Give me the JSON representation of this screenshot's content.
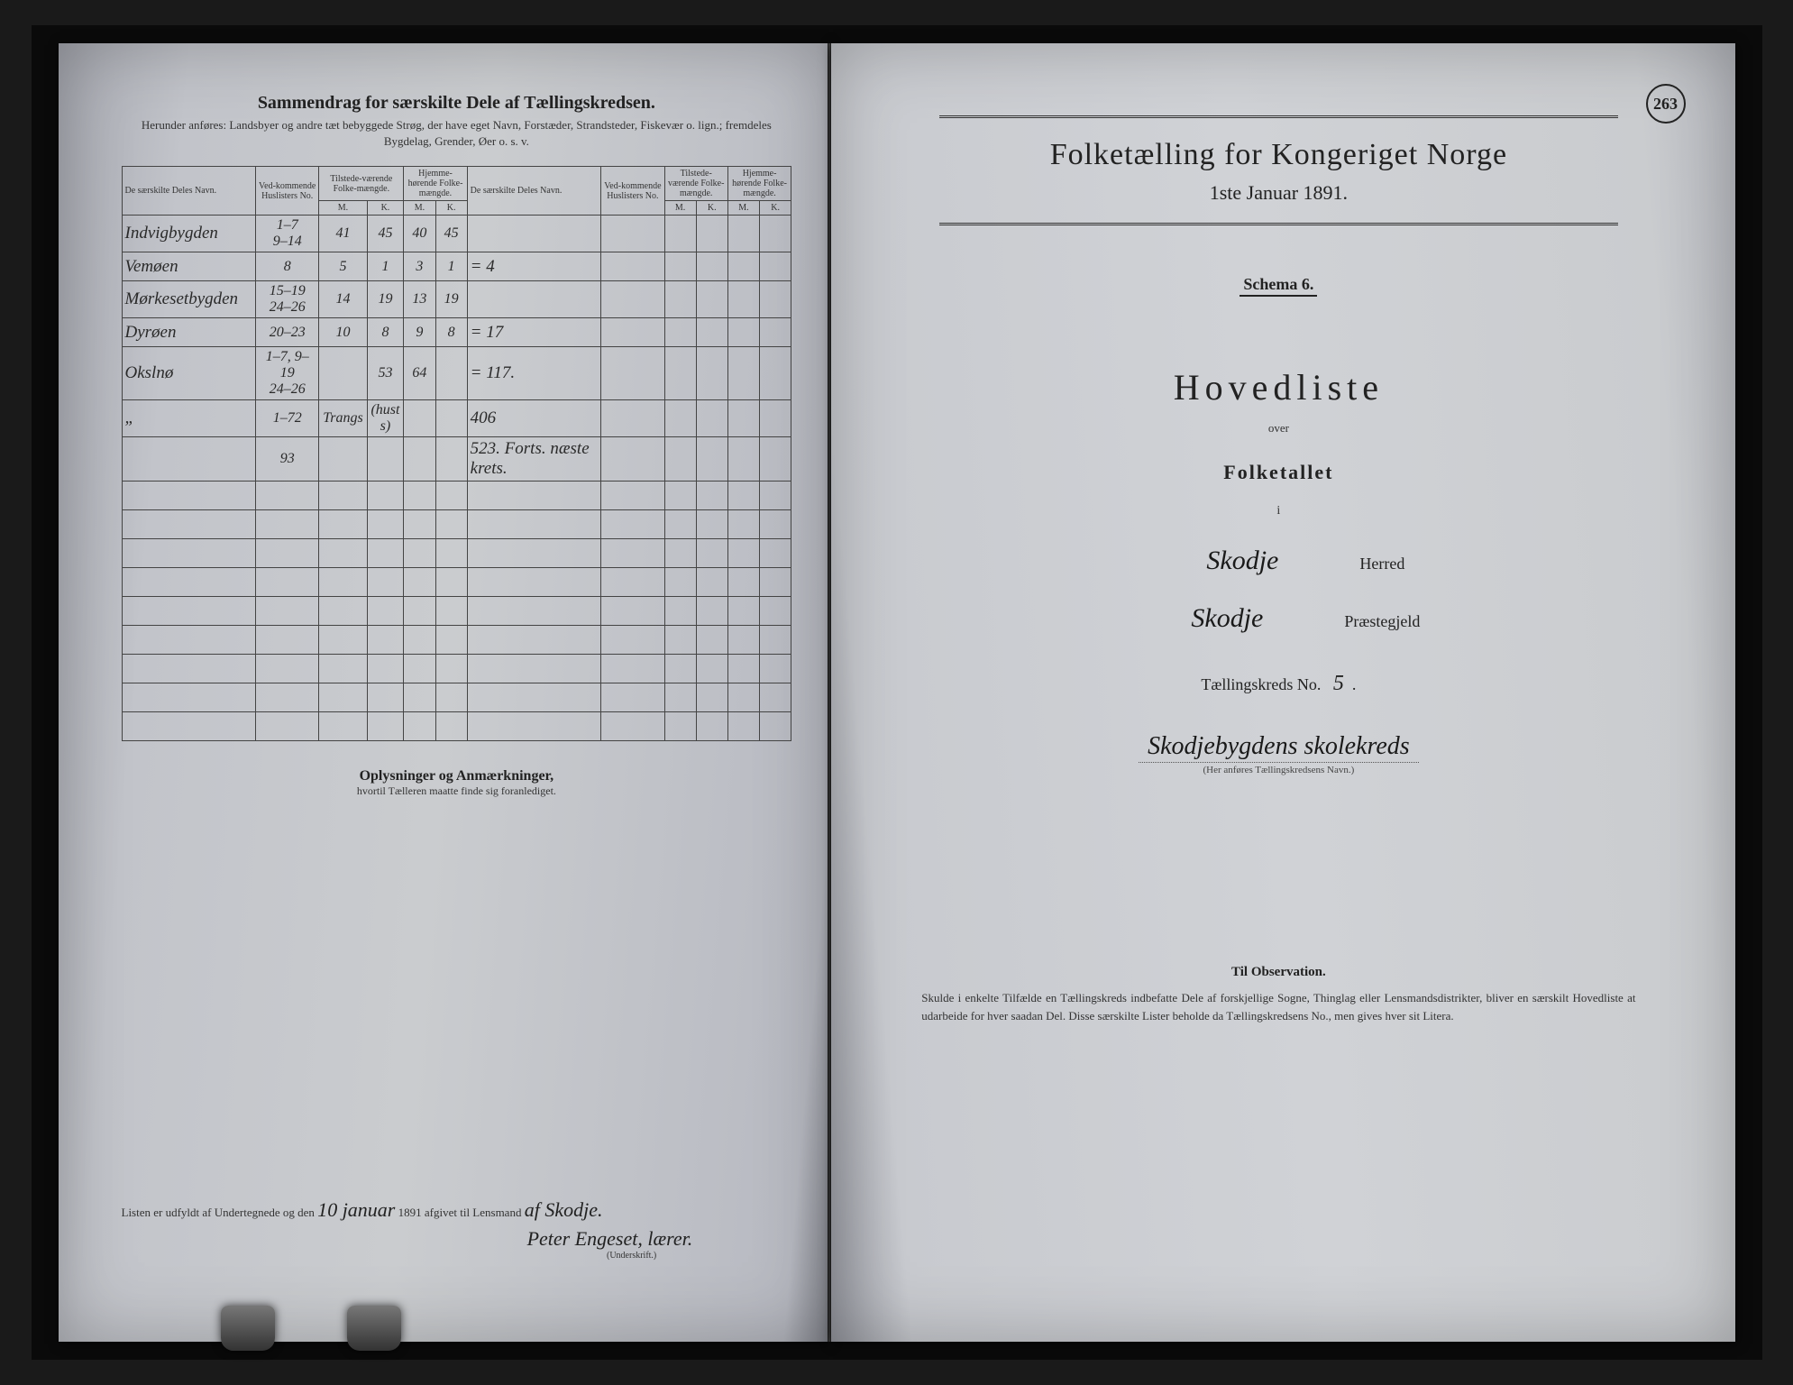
{
  "page_number": "263",
  "colors": {
    "paper_left": "#c8cad0",
    "paper_right": "#d0d2d6",
    "ink": "#222222",
    "handwriting": "#2a2a2a",
    "rule": "#333333",
    "background": "#1a1a1a"
  },
  "left": {
    "title": "Sammendrag for særskilte Dele af Tællingskredsen.",
    "subtitle": "Herunder anføres: Landsbyer og andre tæt bebyggede Strøg, der have eget Navn, Forstæder, Strandsteder, Fiskevær o. lign.; fremdeles Bygdelag, Grender, Øer o. s. v.",
    "table": {
      "headers": {
        "name": "De særskilte Deles Navn.",
        "no": "Ved-kommende Huslisters No.",
        "present": "Tilstede-værende Folke-mængde.",
        "resident": "Hjemme-hørende Folke-mængde.",
        "m": "M.",
        "k": "K."
      },
      "rows": [
        {
          "name": "Indvigbygden",
          "no": "1–7\n9–14",
          "pm": "41",
          "pk": "45",
          "rm": "40",
          "rk": "45",
          "ex": ""
        },
        {
          "name": "Vemøen",
          "no": "8",
          "pm": "5",
          "pk": "1",
          "rm": "3",
          "rk": "1",
          "ex": "= 4"
        },
        {
          "name": "Mørkesetbygden",
          "no": "15–19\n24–26",
          "pm": "14",
          "pk": "19",
          "rm": "13",
          "rk": "19",
          "ex": ""
        },
        {
          "name": "Dyrøen",
          "no": "20–23",
          "pm": "10",
          "pk": "8",
          "rm": "9",
          "rk": "8",
          "ex": "= 17"
        },
        {
          "name": "Okslnø",
          "no": "1–7, 9–19\n24–26",
          "pm": "",
          "pk": "53",
          "rm": "64",
          "rk": "",
          "ex": "= 117."
        },
        {
          "name": "„",
          "no": "1–72",
          "pm": "Trangs",
          "pk": "(hust s)",
          "rm": "",
          "rk": "",
          "ex": "406"
        },
        {
          "name": "",
          "no": "93",
          "pm": "",
          "pk": "",
          "rm": "",
          "rk": "",
          "ex": "523. Forts. næste krets."
        }
      ]
    },
    "remarks_head": "Oplysninger og Anmærkninger,",
    "remarks_sub": "hvortil Tælleren maatte finde sig foranlediget.",
    "sig_prefix": "Listen er udfyldt af Undertegnede og den",
    "sig_date": "10 januar",
    "sig_mid": "1891 afgivet til Lensmand",
    "sig_place": "af Skodje.",
    "sig_name": "Peter Engeset, lærer.",
    "sig_label": "(Underskrift.)"
  },
  "right": {
    "title": "Folketælling for Kongeriget Norge",
    "date": "1ste Januar 1891.",
    "schema": "Schema 6.",
    "hovedliste": "Hovedliste",
    "over": "over",
    "folketallet": "Folketallet",
    "i": "i",
    "herred_hw": "Skodje",
    "herred_label": "Herred",
    "praestegjeld_hw": "Skodje",
    "praestegjeld_label": "Præstegjeld",
    "kreds_label_pre": "Tællingskreds No.",
    "kreds_no": "5",
    "kreds_name": "Skodjebygdens skolekreds",
    "kreds_note": "(Her anføres Tællingskredsens Navn.)",
    "obs_head": "Til Observation.",
    "obs_body": "Skulde i enkelte Tilfælde en Tællingskreds indbefatte Dele af forskjellige Sogne, Thinglag eller Lensmandsdistrikter, bliver en særskilt Hovedliste at udarbeide for hver saadan Del. Disse særskilte Lister beholde da Tællingskredsens No., men gives hver sit Litera."
  }
}
